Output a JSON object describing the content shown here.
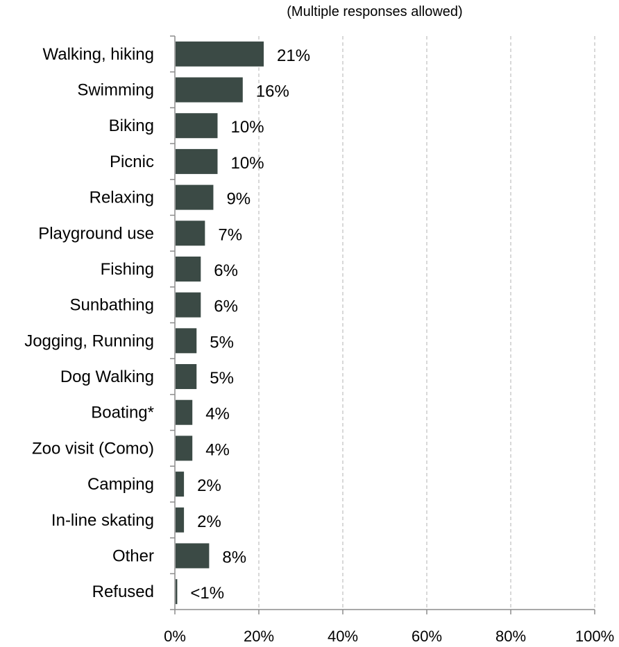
{
  "chart_data": {
    "type": "bar",
    "orientation": "horizontal",
    "subtitle": "(Multiple responses allowed)",
    "categories": [
      "Walking, hiking",
      "Swimming",
      "Biking",
      "Picnic",
      "Relaxing",
      "Playground use",
      "Fishing",
      "Sunbathing",
      "Jogging, Running",
      "Dog Walking",
      "Boating*",
      "Zoo visit  (Como)",
      "Camping",
      "In-line skating",
      "Other",
      "Refused"
    ],
    "values": [
      21,
      16,
      10,
      10,
      9,
      7,
      6,
      6,
      5,
      5,
      4,
      4,
      2,
      2,
      8,
      0.4
    ],
    "value_labels": [
      "21%",
      "16%",
      "10%",
      "10%",
      "9%",
      "7%",
      "6%",
      "6%",
      "5%",
      "5%",
      "4%",
      "4%",
      "2%",
      "2%",
      "8%",
      "<1%"
    ],
    "xlim": [
      0,
      100
    ],
    "x_ticks": [
      0,
      20,
      40,
      60,
      80,
      100
    ],
    "x_tick_labels": [
      "0%",
      "20%",
      "40%",
      "60%",
      "80%",
      "100%"
    ],
    "grid": "vertical dashed",
    "legend": "none",
    "bar_color": "#3b4a45"
  }
}
